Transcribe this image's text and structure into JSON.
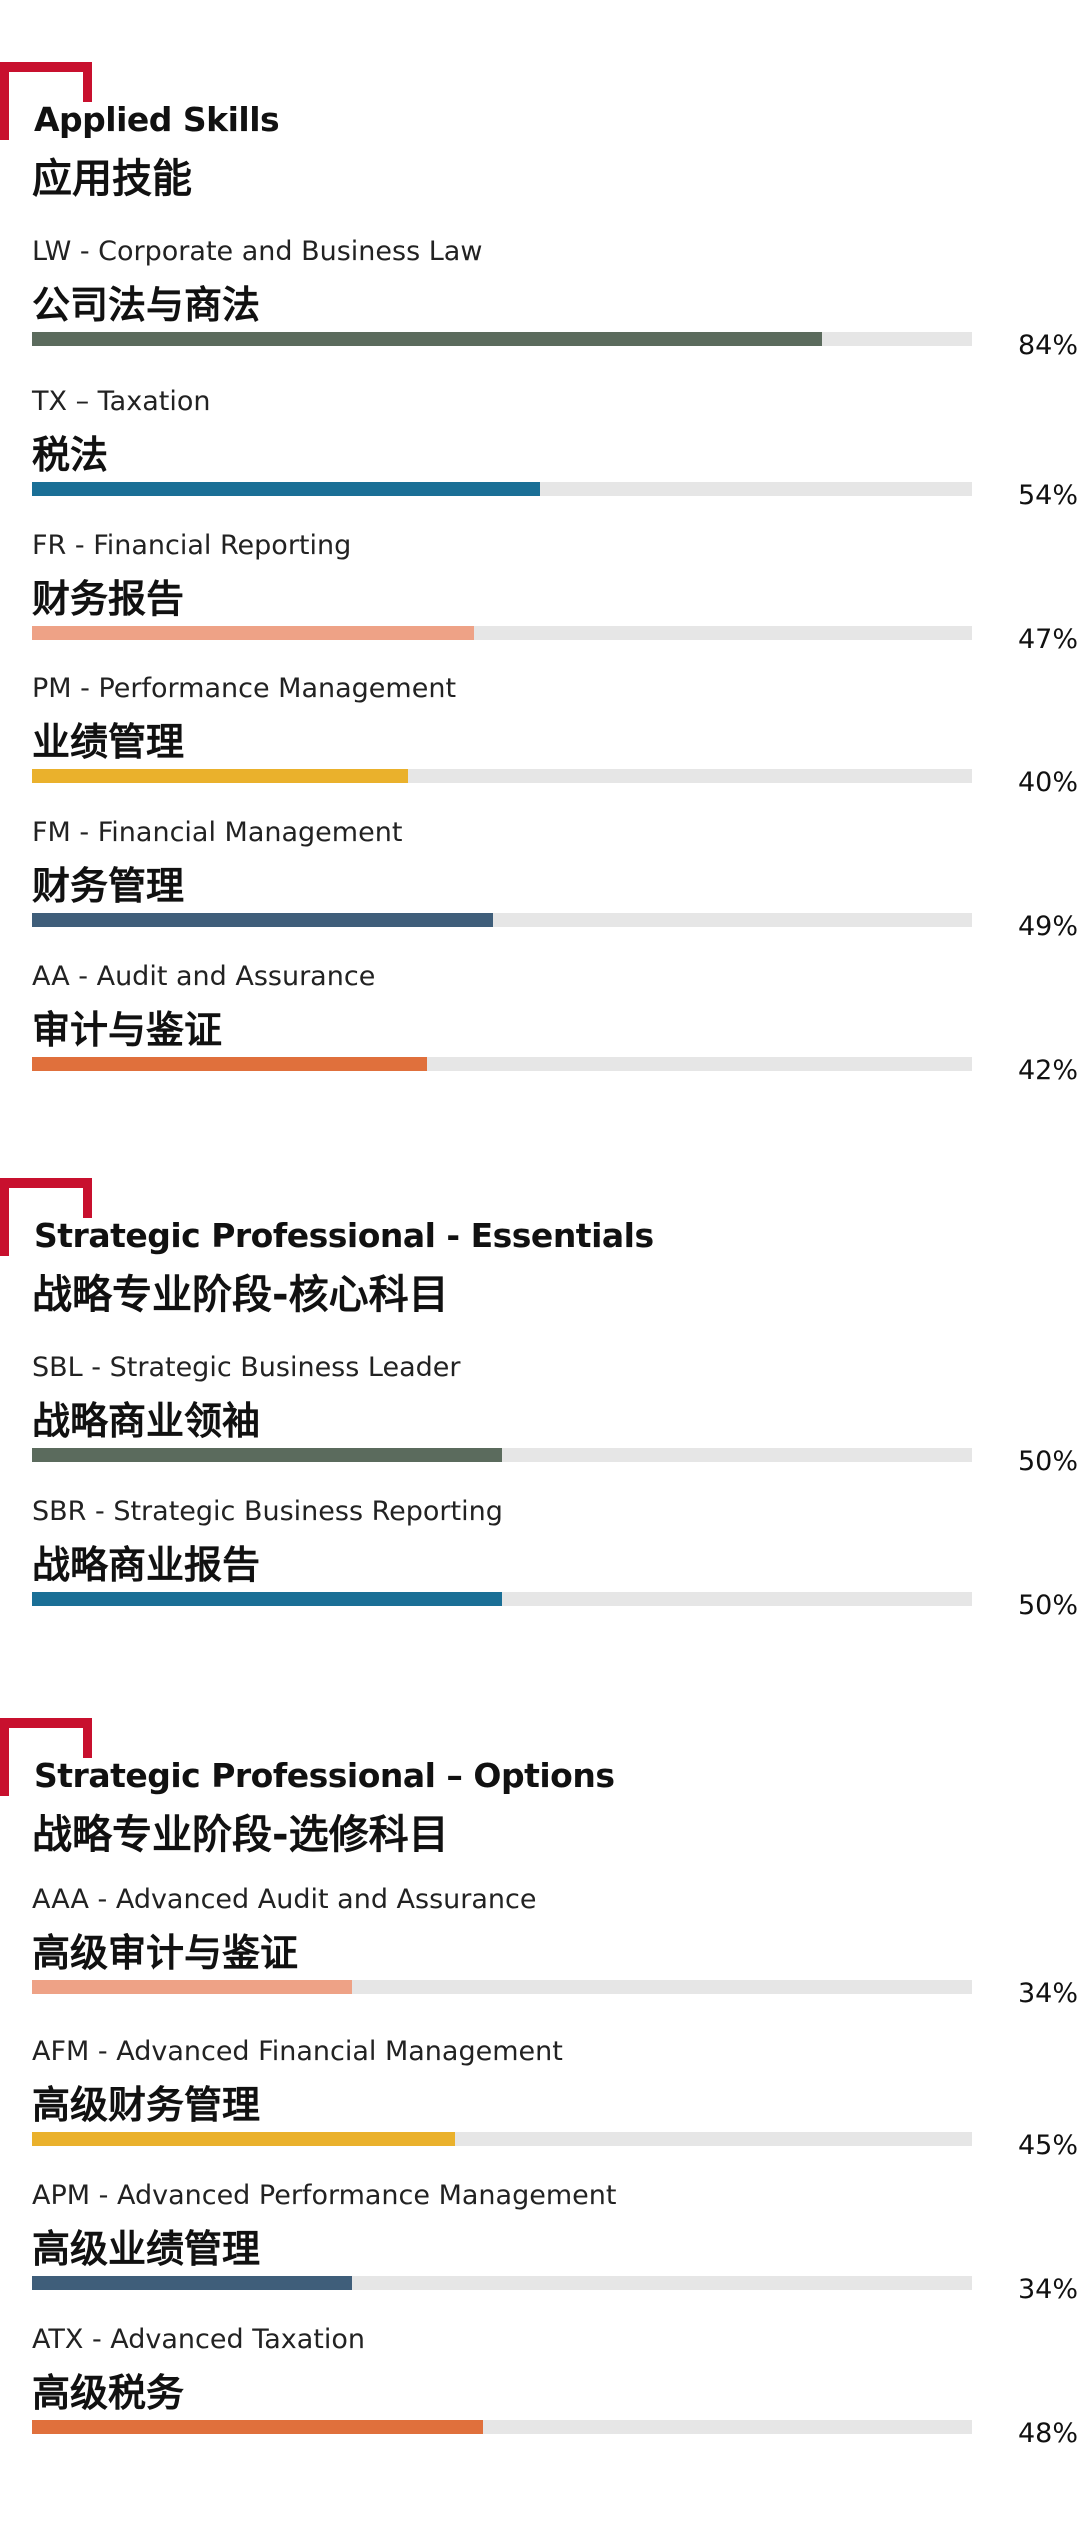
{
  "sections": [
    {
      "title_en": "Applied Skills",
      "title_zh": "应用技能",
      "items": [
        {
          "en": "LW - Corporate and Business Law",
          "zh": "公司法与商法",
          "value": 84,
          "label": "84%",
          "color": "#5b6b5d"
        },
        {
          "en": "TX – Taxation",
          "zh": "税法",
          "value": 54,
          "label": "54%",
          "color": "#1a6f96"
        },
        {
          "en": "FR - Financial Reporting",
          "zh": "财务报告",
          "value": 47,
          "label": "47%",
          "color": "#eea286"
        },
        {
          "en": "PM - Performance Management",
          "zh": "业绩管理",
          "value": 40,
          "label": "40%",
          "color": "#eab12c"
        },
        {
          "en": "FM - Financial Management",
          "zh": "财务管理",
          "value": 49,
          "label": "49%",
          "color": "#3f5e7a"
        },
        {
          "en": "AA - Audit and Assurance",
          "zh": "审计与鉴证",
          "value": 42,
          "label": "42%",
          "color": "#e0703c"
        }
      ]
    },
    {
      "title_en": "Strategic Professional - Essentials",
      "title_zh": "战略专业阶段-核心科目",
      "items": [
        {
          "en": "SBL - Strategic Business Leader",
          "zh": "战略商业领袖",
          "value": 50,
          "label": "50%",
          "color": "#5b6b5d"
        },
        {
          "en": "SBR - Strategic Business Reporting",
          "zh": "战略商业报告",
          "value": 50,
          "label": "50%",
          "color": "#1a6f96"
        }
      ]
    },
    {
      "title_en": "Strategic Professional – Options",
      "title_zh": "战略专业阶段-选修科目",
      "items": [
        {
          "en": "AAA - Advanced Audit and Assurance",
          "zh": "高级审计与鉴证",
          "value": 34,
          "label": "34%",
          "color": "#eea286"
        },
        {
          "en": "AFM - Advanced Financial Management",
          "zh": "高级财务管理",
          "value": 45,
          "label": "45%",
          "color": "#eab12c"
        },
        {
          "en": "APM - Advanced Performance Management",
          "zh": "高级业绩管理",
          "value": 34,
          "label": "34%",
          "color": "#3f5e7a"
        },
        {
          "en": "ATX - Advanced Taxation",
          "zh": "高级税务",
          "value": 48,
          "label": "48%",
          "color": "#e0703c"
        }
      ]
    }
  ],
  "chart_data": {
    "type": "bar",
    "orientation": "horizontal",
    "value_unit": "%",
    "xlim": [
      0,
      100
    ],
    "grid": false,
    "categories": [
      "LW - Corporate and Business Law",
      "TX – Taxation",
      "FR - Financial Reporting",
      "PM - Performance Management",
      "FM - Financial Management",
      "AA - Audit and Assurance",
      "SBL - Strategic Business Leader",
      "SBR - Strategic Business Reporting",
      "AAA - Advanced Audit and Assurance",
      "AFM - Advanced Financial Management",
      "APM - Advanced Performance Management",
      "ATX - Advanced Taxation"
    ],
    "values": [
      84,
      54,
      47,
      40,
      49,
      42,
      50,
      50,
      34,
      45,
      34,
      48
    ]
  }
}
